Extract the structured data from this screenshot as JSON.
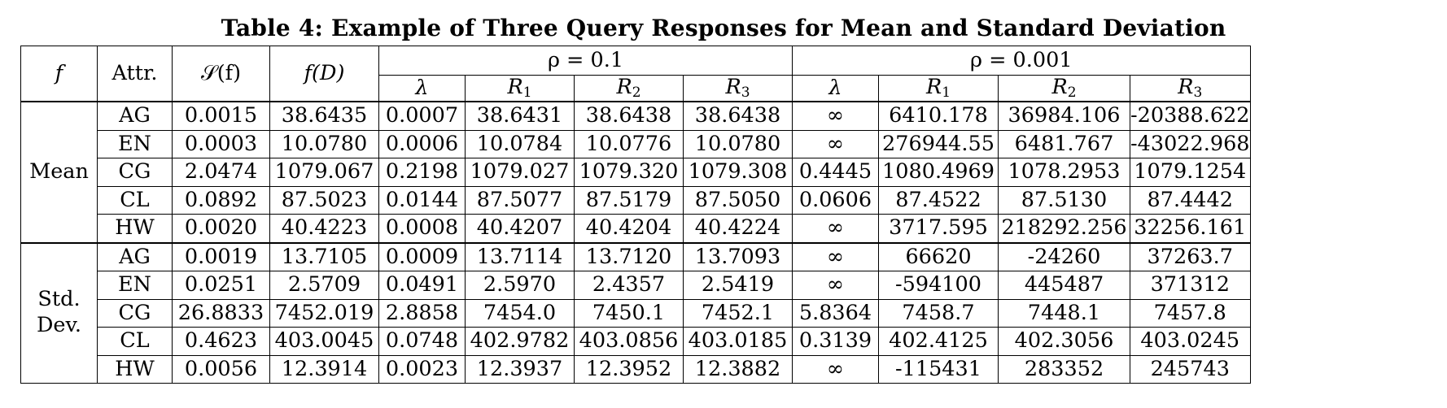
{
  "caption": "Table 4: Example of Three Query Responses for Mean and Standard Deviation",
  "header": {
    "f": "f",
    "attr": "Attr.",
    "sf": "𝒮(f)",
    "fd": "f(D)",
    "rho1": "ρ = 0.1",
    "rho2": "ρ = 0.001",
    "lambda": "λ",
    "r_prefix": "R",
    "r1_sub": "1",
    "r2_sub": "2",
    "r3_sub": "3"
  },
  "groups": [
    {
      "label": "Mean",
      "rows": [
        {
          "attr": "AG",
          "sf": "0.0015",
          "fd": "38.6435",
          "l1": "0.0007",
          "a1": "38.6431",
          "a2": "38.6438",
          "a3": "38.6438",
          "l2": "∞",
          "b1": "6410.178",
          "b2": "36984.106",
          "b3": "-20388.622"
        },
        {
          "attr": "EN",
          "sf": "0.0003",
          "fd": "10.0780",
          "l1": "0.0006",
          "a1": "10.0784",
          "a2": "10.0776",
          "a3": "10.0780",
          "l2": "∞",
          "b1": "276944.55",
          "b2": "6481.767",
          "b3": "-43022.968"
        },
        {
          "attr": "CG",
          "sf": "2.0474",
          "fd": "1079.067",
          "l1": "0.2198",
          "a1": "1079.027",
          "a2": "1079.320",
          "a3": "1079.308",
          "l2": "0.4445",
          "b1": "1080.4969",
          "b2": "1078.2953",
          "b3": "1079.1254"
        },
        {
          "attr": "CL",
          "sf": "0.0892",
          "fd": "87.5023",
          "l1": "0.0144",
          "a1": "87.5077",
          "a2": "87.5179",
          "a3": "87.5050",
          "l2": "0.0606",
          "b1": "87.4522",
          "b2": "87.5130",
          "b3": "87.4442"
        },
        {
          "attr": "HW",
          "sf": "0.0020",
          "fd": "40.4223",
          "l1": "0.0008",
          "a1": "40.4207",
          "a2": "40.4204",
          "a3": "40.4224",
          "l2": "∞",
          "b1": "3717.595",
          "b2": "218292.256",
          "b3": "32256.161"
        }
      ]
    },
    {
      "label_line1": "Std.",
      "label_line2": "Dev.",
      "rows": [
        {
          "attr": "AG",
          "sf": "0.0019",
          "fd": "13.7105",
          "l1": "0.0009",
          "a1": "13.7114",
          "a2": "13.7120",
          "a3": "13.7093",
          "l2": "∞",
          "b1": "66620",
          "b2": "-24260",
          "b3": "37263.7"
        },
        {
          "attr": "EN",
          "sf": "0.0251",
          "fd": "2.5709",
          "l1": "0.0491",
          "a1": "2.5970",
          "a2": "2.4357",
          "a3": "2.5419",
          "l2": "∞",
          "b1": "-594100",
          "b2": "445487",
          "b3": "371312"
        },
        {
          "attr": "CG",
          "sf": "26.8833",
          "fd": "7452.019",
          "l1": "2.8858",
          "a1": "7454.0",
          "a2": "7450.1",
          "a3": "7452.1",
          "l2": "5.8364",
          "b1": "7458.7",
          "b2": "7448.1",
          "b3": "7457.8"
        },
        {
          "attr": "CL",
          "sf": "0.4623",
          "fd": "403.0045",
          "l1": "0.0748",
          "a1": "402.9782",
          "a2": "403.0856",
          "a3": "403.0185",
          "l2": "0.3139",
          "b1": "402.4125",
          "b2": "402.3056",
          "b3": "403.0245"
        },
        {
          "attr": "HW",
          "sf": "0.0056",
          "fd": "12.3914",
          "l1": "0.0023",
          "a1": "12.3937",
          "a2": "12.3952",
          "a3": "12.3882",
          "l2": "∞",
          "b1": "-115431",
          "b2": "283352",
          "b3": "245743"
        }
      ]
    }
  ]
}
